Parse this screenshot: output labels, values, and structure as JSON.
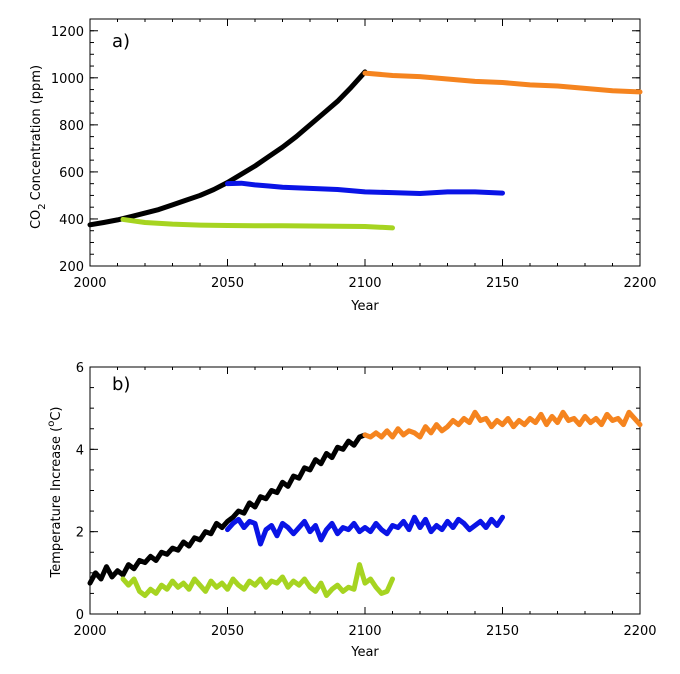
{
  "chart_data": [
    {
      "type": "line",
      "panel_label": "a)",
      "xlabel": "Year",
      "ylabel": "Concentration (ppm)",
      "ylabel_prefix": "CO",
      "ylabel_subscript": "2",
      "xlim": [
        2000,
        2200
      ],
      "ylim": [
        200,
        1250
      ],
      "xticks": [
        2000,
        2050,
        2100,
        2150,
        2200
      ],
      "yticks": [
        200,
        400,
        600,
        800,
        1000,
        1200
      ],
      "series": [
        {
          "color": "#000000",
          "x": [
            2000,
            2005,
            2010,
            2015,
            2020,
            2025,
            2030,
            2035,
            2040,
            2045,
            2050,
            2055,
            2060,
            2065,
            2070,
            2075,
            2080,
            2085,
            2090,
            2095,
            2100
          ],
          "y": [
            375,
            385,
            396,
            410,
            425,
            440,
            460,
            480,
            500,
            525,
            555,
            590,
            625,
            665,
            705,
            750,
            800,
            850,
            900,
            960,
            1025
          ]
        },
        {
          "color": "#a6d421",
          "x": [
            2012,
            2020,
            2030,
            2040,
            2050,
            2060,
            2070,
            2080,
            2090,
            2100,
            2110
          ],
          "y": [
            398,
            385,
            378,
            374,
            372,
            371,
            371,
            370,
            369,
            368,
            362
          ]
        },
        {
          "color": "#0a14e6",
          "x": [
            2050,
            2055,
            2060,
            2065,
            2070,
            2080,
            2090,
            2100,
            2110,
            2120,
            2130,
            2140,
            2150
          ],
          "y": [
            550,
            552,
            545,
            540,
            535,
            530,
            525,
            515,
            512,
            508,
            515,
            515,
            510
          ]
        },
        {
          "color": "#f5841f",
          "x": [
            2100,
            2110,
            2120,
            2130,
            2140,
            2150,
            2160,
            2170,
            2180,
            2190,
            2200
          ],
          "y": [
            1020,
            1010,
            1005,
            995,
            985,
            980,
            970,
            965,
            955,
            945,
            940
          ]
        }
      ]
    },
    {
      "type": "line",
      "panel_label": "b)",
      "xlabel": "Year",
      "ylabel": "Temperature Increase (",
      "ylabel_superscript": "o",
      "ylabel_unit_suffix": "C)",
      "xlim": [
        2000,
        2200
      ],
      "ylim": [
        0,
        6
      ],
      "xticks": [
        2000,
        2050,
        2100,
        2150,
        2200
      ],
      "yticks": [
        0,
        2,
        4,
        6
      ],
      "series": [
        {
          "color": "#000000",
          "x": [
            2000,
            2002,
            2004,
            2006,
            2008,
            2010,
            2012,
            2014,
            2016,
            2018,
            2020,
            2022,
            2024,
            2026,
            2028,
            2030,
            2032,
            2034,
            2036,
            2038,
            2040,
            2042,
            2044,
            2046,
            2048,
            2050,
            2052,
            2054,
            2056,
            2058,
            2060,
            2062,
            2064,
            2066,
            2068,
            2070,
            2072,
            2074,
            2076,
            2078,
            2080,
            2082,
            2084,
            2086,
            2088,
            2090,
            2092,
            2094,
            2096,
            2098,
            2100
          ],
          "y": [
            0.75,
            1.0,
            0.85,
            1.15,
            0.9,
            1.05,
            0.95,
            1.2,
            1.1,
            1.3,
            1.25,
            1.4,
            1.3,
            1.5,
            1.45,
            1.6,
            1.55,
            1.75,
            1.65,
            1.85,
            1.8,
            2.0,
            1.95,
            2.2,
            2.1,
            2.25,
            2.35,
            2.5,
            2.45,
            2.7,
            2.6,
            2.85,
            2.8,
            3.0,
            2.95,
            3.2,
            3.1,
            3.35,
            3.3,
            3.55,
            3.5,
            3.75,
            3.65,
            3.9,
            3.8,
            4.05,
            4.0,
            4.2,
            4.1,
            4.3,
            4.35
          ]
        },
        {
          "color": "#a6d421",
          "x": [
            2012,
            2014,
            2016,
            2018,
            2020,
            2022,
            2024,
            2026,
            2028,
            2030,
            2032,
            2034,
            2036,
            2038,
            2040,
            2042,
            2044,
            2046,
            2048,
            2050,
            2052,
            2054,
            2056,
            2058,
            2060,
            2062,
            2064,
            2066,
            2068,
            2070,
            2072,
            2074,
            2076,
            2078,
            2080,
            2082,
            2084,
            2086,
            2088,
            2090,
            2092,
            2094,
            2096,
            2098,
            2100,
            2102,
            2104,
            2106,
            2108,
            2110
          ],
          "y": [
            0.85,
            0.7,
            0.85,
            0.55,
            0.45,
            0.6,
            0.5,
            0.7,
            0.6,
            0.8,
            0.65,
            0.75,
            0.6,
            0.85,
            0.7,
            0.55,
            0.8,
            0.65,
            0.75,
            0.6,
            0.85,
            0.7,
            0.6,
            0.8,
            0.7,
            0.85,
            0.65,
            0.8,
            0.75,
            0.9,
            0.65,
            0.8,
            0.7,
            0.85,
            0.65,
            0.55,
            0.75,
            0.45,
            0.6,
            0.7,
            0.55,
            0.65,
            0.6,
            1.2,
            0.75,
            0.85,
            0.65,
            0.5,
            0.55,
            0.85
          ]
        },
        {
          "color": "#0a14e6",
          "x": [
            2050,
            2052,
            2054,
            2056,
            2058,
            2060,
            2062,
            2064,
            2066,
            2068,
            2070,
            2072,
            2074,
            2076,
            2078,
            2080,
            2082,
            2084,
            2086,
            2088,
            2090,
            2092,
            2094,
            2096,
            2098,
            2100,
            2102,
            2104,
            2106,
            2108,
            2110,
            2112,
            2114,
            2116,
            2118,
            2120,
            2122,
            2124,
            2126,
            2128,
            2130,
            2132,
            2134,
            2136,
            2138,
            2140,
            2142,
            2144,
            2146,
            2148,
            2150
          ],
          "y": [
            2.05,
            2.2,
            2.3,
            2.1,
            2.25,
            2.2,
            1.7,
            2.05,
            2.15,
            1.9,
            2.2,
            2.1,
            1.95,
            2.1,
            2.25,
            2.0,
            2.15,
            1.8,
            2.05,
            2.2,
            1.95,
            2.1,
            2.05,
            2.2,
            2.0,
            2.1,
            2.0,
            2.2,
            2.05,
            1.95,
            2.15,
            2.1,
            2.25,
            2.05,
            2.35,
            2.1,
            2.3,
            2.0,
            2.15,
            2.05,
            2.25,
            2.1,
            2.3,
            2.2,
            2.05,
            2.15,
            2.25,
            2.1,
            2.3,
            2.15,
            2.35
          ]
        },
        {
          "color": "#f5841f",
          "x": [
            2100,
            2102,
            2104,
            2106,
            2108,
            2110,
            2112,
            2114,
            2116,
            2118,
            2120,
            2122,
            2124,
            2126,
            2128,
            2130,
            2132,
            2134,
            2136,
            2138,
            2140,
            2142,
            2144,
            2146,
            2148,
            2150,
            2152,
            2154,
            2156,
            2158,
            2160,
            2162,
            2164,
            2166,
            2168,
            2170,
            2172,
            2174,
            2176,
            2178,
            2180,
            2182,
            2184,
            2186,
            2188,
            2190,
            2192,
            2194,
            2196,
            2198,
            2200
          ],
          "y": [
            4.35,
            4.3,
            4.4,
            4.3,
            4.45,
            4.3,
            4.5,
            4.35,
            4.45,
            4.4,
            4.3,
            4.55,
            4.4,
            4.6,
            4.45,
            4.55,
            4.7,
            4.6,
            4.75,
            4.65,
            4.9,
            4.7,
            4.75,
            4.55,
            4.7,
            4.6,
            4.75,
            4.55,
            4.7,
            4.6,
            4.75,
            4.65,
            4.85,
            4.6,
            4.8,
            4.65,
            4.9,
            4.7,
            4.75,
            4.6,
            4.8,
            4.65,
            4.75,
            4.6,
            4.85,
            4.7,
            4.75,
            4.6,
            4.9,
            4.75,
            4.6
          ]
        }
      ]
    }
  ]
}
